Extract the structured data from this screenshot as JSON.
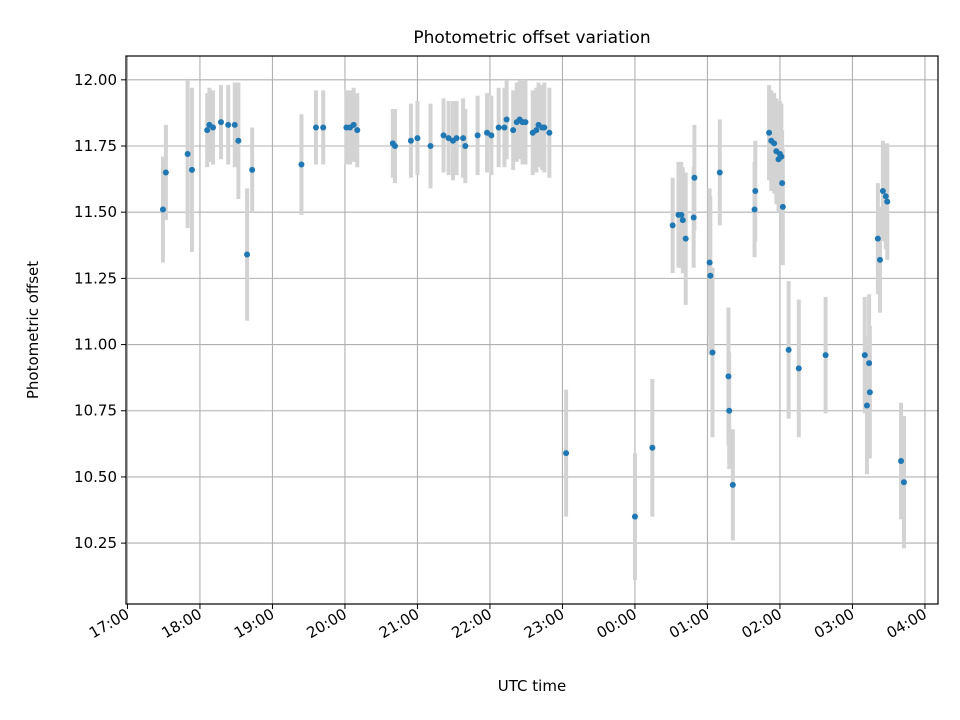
{
  "colors": {
    "point": "#1f77b4",
    "errorbar": "#d3d3d3",
    "grid": "#b0b0b0",
    "axis": "#000000"
  },
  "chart_data": {
    "type": "scatter",
    "title": "Photometric offset variation",
    "xlabel": "UTC time",
    "ylabel": "Photometric offset",
    "grid": true,
    "xaxis": {
      "unit": "hours since 17:00 UTC",
      "range": [
        -0.02,
        11.18
      ],
      "ticks": [
        0,
        1,
        2,
        3,
        4,
        5,
        6,
        7,
        8,
        9,
        10,
        11
      ],
      "tick_labels": [
        "17:00",
        "18:00",
        "19:00",
        "20:00",
        "21:00",
        "22:00",
        "23:00",
        "00:00",
        "01:00",
        "02:00",
        "03:00",
        "04:00"
      ]
    },
    "yaxis": {
      "range": [
        10.02,
        12.09
      ],
      "ticks": [
        10.25,
        10.5,
        10.75,
        11.0,
        11.25,
        11.5,
        11.75,
        12.0
      ],
      "tick_labels": [
        "10.25",
        "10.50",
        "10.75",
        "11.00",
        "11.25",
        "11.50",
        "11.75",
        "12.00"
      ]
    },
    "series": [
      {
        "points": [
          [
            0.49,
            11.51,
            0.2
          ],
          [
            0.53,
            11.65,
            0.18
          ],
          [
            0.83,
            11.72,
            0.28
          ],
          [
            0.89,
            11.66,
            0.31
          ],
          [
            1.1,
            11.81,
            0.14
          ],
          [
            1.13,
            11.83,
            0.14
          ],
          [
            1.18,
            11.82,
            0.14
          ],
          [
            1.29,
            11.84,
            0.14
          ],
          [
            1.39,
            11.83,
            0.15
          ],
          [
            1.48,
            11.83,
            0.16
          ],
          [
            1.53,
            11.77,
            0.22
          ],
          [
            1.65,
            11.34,
            0.25
          ],
          [
            1.72,
            11.66,
            0.16
          ],
          [
            2.4,
            11.68,
            0.19
          ],
          [
            2.6,
            11.82,
            0.14
          ],
          [
            2.7,
            11.82,
            0.14
          ],
          [
            3.02,
            11.82,
            0.14
          ],
          [
            3.07,
            11.82,
            0.14
          ],
          [
            3.12,
            11.83,
            0.14
          ],
          [
            3.17,
            11.81,
            0.14
          ],
          [
            3.66,
            11.76,
            0.13
          ],
          [
            3.69,
            11.75,
            0.14
          ],
          [
            3.91,
            11.77,
            0.14
          ],
          [
            4.0,
            11.78,
            0.14
          ],
          [
            4.18,
            11.75,
            0.16
          ],
          [
            4.36,
            11.79,
            0.14
          ],
          [
            4.43,
            11.78,
            0.14
          ],
          [
            4.49,
            11.77,
            0.15
          ],
          [
            4.54,
            11.78,
            0.14
          ],
          [
            4.63,
            11.78,
            0.15
          ],
          [
            4.66,
            11.75,
            0.14
          ],
          [
            4.83,
            11.79,
            0.15
          ],
          [
            4.96,
            11.8,
            0.15
          ],
          [
            5.02,
            11.79,
            0.15
          ],
          [
            5.12,
            11.82,
            0.15
          ],
          [
            5.2,
            11.82,
            0.15
          ],
          [
            5.23,
            11.85,
            0.15
          ],
          [
            5.32,
            11.81,
            0.15
          ],
          [
            5.37,
            11.84,
            0.15
          ],
          [
            5.41,
            11.85,
            0.15
          ],
          [
            5.45,
            11.84,
            0.16
          ],
          [
            5.49,
            11.84,
            0.16
          ],
          [
            5.59,
            11.8,
            0.16
          ],
          [
            5.64,
            11.81,
            0.16
          ],
          [
            5.67,
            11.83,
            0.16
          ],
          [
            5.72,
            11.82,
            0.16
          ],
          [
            5.75,
            11.82,
            0.17
          ],
          [
            5.82,
            11.8,
            0.17
          ],
          [
            6.05,
            10.59,
            0.24
          ],
          [
            7.0,
            10.35,
            0.24
          ],
          [
            7.24,
            10.61,
            0.26
          ],
          [
            7.52,
            11.45,
            0.18
          ],
          [
            7.6,
            11.49,
            0.2
          ],
          [
            7.64,
            11.49,
            0.2
          ],
          [
            7.66,
            11.47,
            0.2
          ],
          [
            7.7,
            11.4,
            0.25
          ],
          [
            7.81,
            11.48,
            0.19
          ],
          [
            7.82,
            11.63,
            0.2
          ],
          [
            8.03,
            11.31,
            0.28
          ],
          [
            8.04,
            11.26,
            0.3
          ],
          [
            8.07,
            10.97,
            0.32
          ],
          [
            8.17,
            11.65,
            0.2
          ],
          [
            8.29,
            10.88,
            0.26
          ],
          [
            8.3,
            10.75,
            0.22
          ],
          [
            8.35,
            10.47,
            0.21
          ],
          [
            8.65,
            11.51,
            0.18
          ],
          [
            8.66,
            11.58,
            0.19
          ],
          [
            8.85,
            11.8,
            0.18
          ],
          [
            8.88,
            11.77,
            0.19
          ],
          [
            8.92,
            11.76,
            0.19
          ],
          [
            8.95,
            11.73,
            0.2
          ],
          [
            8.98,
            11.7,
            0.2
          ],
          [
            9.0,
            11.72,
            0.2
          ],
          [
            9.02,
            11.71,
            0.2
          ],
          [
            9.03,
            11.61,
            0.2
          ],
          [
            9.04,
            11.52,
            0.22
          ],
          [
            9.12,
            10.98,
            0.26
          ],
          [
            9.26,
            10.91,
            0.26
          ],
          [
            9.63,
            10.96,
            0.22
          ],
          [
            10.17,
            10.96,
            0.22
          ],
          [
            10.2,
            10.77,
            0.26
          ],
          [
            10.23,
            10.93,
            0.26
          ],
          [
            10.24,
            10.82,
            0.25
          ],
          [
            10.35,
            11.4,
            0.21
          ],
          [
            10.38,
            11.32,
            0.2
          ],
          [
            10.42,
            11.58,
            0.19
          ],
          [
            10.46,
            11.56,
            0.2
          ],
          [
            10.48,
            11.54,
            0.22
          ],
          [
            10.67,
            10.56,
            0.22
          ],
          [
            10.71,
            10.48,
            0.25
          ]
        ]
      }
    ]
  }
}
